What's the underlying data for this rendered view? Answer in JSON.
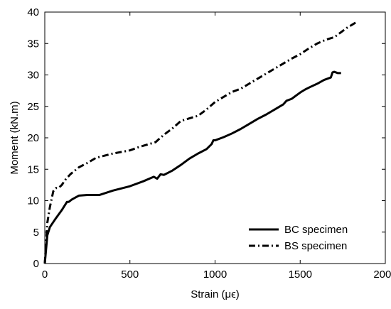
{
  "chart_data": {
    "type": "line",
    "title": "",
    "xlabel": "Strain (μϵ)",
    "ylabel": "Moment (kN.m)",
    "xlim": [
      0,
      2000
    ],
    "ylim": [
      0,
      40
    ],
    "xticks": [
      "0",
      "500",
      "1000",
      "1500",
      "2000"
    ],
    "yticks": [
      "0",
      "5",
      "10",
      "15",
      "20",
      "25",
      "30",
      "35",
      "40"
    ],
    "grid": false,
    "legend_position": "bottom-right",
    "series": [
      {
        "name": "BC specimen",
        "style": "solid",
        "color": "#000000",
        "x": [
          0,
          15,
          30,
          60,
          100,
          130,
          140,
          160,
          200,
          250,
          320,
          400,
          500,
          580,
          640,
          660,
          680,
          700,
          750,
          800,
          850,
          900,
          950,
          980,
          990,
          1000,
          1050,
          1100,
          1150,
          1200,
          1250,
          1300,
          1350,
          1400,
          1420,
          1450,
          1480,
          1500,
          1530,
          1560,
          1600,
          1640,
          1680,
          1690,
          1700,
          1720,
          1740
        ],
        "y": [
          0,
          4.5,
          5.8,
          7.0,
          8.5,
          9.8,
          9.8,
          10.2,
          10.8,
          10.9,
          10.9,
          11.6,
          12.3,
          13.1,
          13.8,
          13.5,
          14.2,
          14.1,
          14.8,
          15.7,
          16.7,
          17.5,
          18.2,
          19.0,
          19.6,
          19.6,
          20.1,
          20.7,
          21.4,
          22.2,
          23.0,
          23.7,
          24.5,
          25.3,
          25.9,
          26.2,
          26.8,
          27.2,
          27.7,
          28.1,
          28.6,
          29.2,
          29.6,
          30.4,
          30.5,
          30.3,
          30.3
        ]
      },
      {
        "name": "BS specimen",
        "style": "dash-dot",
        "color": "#000000",
        "x": [
          0,
          15,
          30,
          50,
          65,
          80,
          100,
          120,
          150,
          200,
          250,
          300,
          400,
          500,
          550,
          600,
          650,
          700,
          750,
          800,
          850,
          900,
          950,
          1000,
          1050,
          1100,
          1150,
          1200,
          1250,
          1300,
          1350,
          1400,
          1450,
          1500,
          1550,
          1600,
          1650,
          1700,
          1750,
          1780,
          1800,
          1830
        ],
        "y": [
          0,
          6.5,
          9.0,
          11.5,
          12.0,
          12.0,
          12.5,
          13.3,
          14.2,
          15.3,
          16.0,
          16.8,
          17.5,
          18.0,
          18.5,
          18.9,
          19.3,
          20.5,
          21.5,
          22.7,
          23.1,
          23.5,
          24.5,
          25.7,
          26.5,
          27.3,
          27.8,
          28.6,
          29.4,
          30.2,
          31.0,
          31.8,
          32.6,
          33.3,
          34.2,
          35.0,
          35.6,
          36.0,
          37.0,
          37.6,
          37.9,
          38.4
        ]
      }
    ]
  }
}
